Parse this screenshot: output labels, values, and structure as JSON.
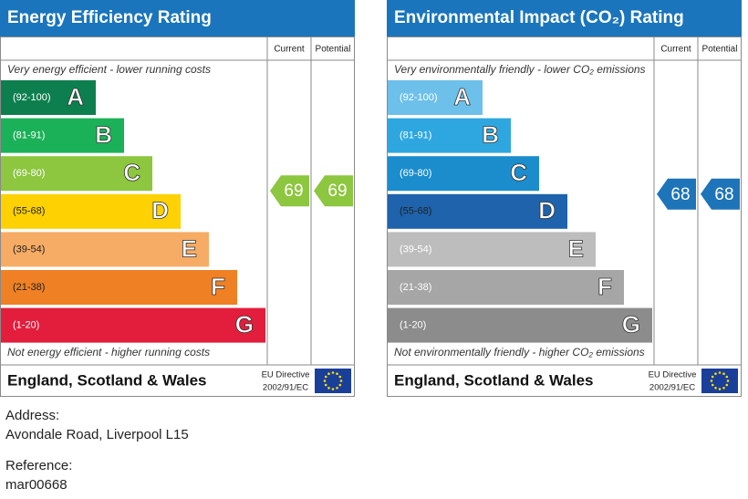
{
  "panels": [
    {
      "title": "Energy Efficiency Rating",
      "col_current": "Current",
      "col_potential": "Potential",
      "top_note": "Very energy efficient - lower running costs",
      "bottom_note": "Not energy efficient - higher running costs",
      "bands": [
        {
          "range": "(92-100)",
          "letter": "A",
          "color": "#0d7f4f"
        },
        {
          "range": "(81-91)",
          "letter": "B",
          "color": "#1bb158"
        },
        {
          "range": "(69-80)",
          "letter": "C",
          "color": "#8dc63f"
        },
        {
          "range": "(55-68)",
          "letter": "D",
          "color": "#fdd102"
        },
        {
          "range": "(39-54)",
          "letter": "E",
          "color": "#f6ac64"
        },
        {
          "range": "(21-38)",
          "letter": "F",
          "color": "#ef8023"
        },
        {
          "range": "(1-20)",
          "letter": "G",
          "color": "#e31d3c"
        }
      ],
      "current": 69,
      "potential": 69,
      "arrow_color": "#8dc63f",
      "region": "England, Scotland & Wales",
      "directive": "EU Directive",
      "directive_code": "2002/91/EC"
    },
    {
      "title": "Environmental Impact (CO₂) Rating",
      "col_current": "Current",
      "col_potential": "Potential",
      "top_note": "Very environmentally friendly - lower CO₂ emissions",
      "bottom_note": "Not environmentally friendly - higher CO₂ emissions",
      "bands": [
        {
          "range": "(92-100)",
          "letter": "A",
          "color": "#6dc0ea"
        },
        {
          "range": "(81-91)",
          "letter": "B",
          "color": "#2ea7e0"
        },
        {
          "range": "(69-80)",
          "letter": "C",
          "color": "#1b8dcd"
        },
        {
          "range": "(55-68)",
          "letter": "D",
          "color": "#1e63ab"
        },
        {
          "range": "(39-54)",
          "letter": "E",
          "color": "#bdbdbd"
        },
        {
          "range": "(21-38)",
          "letter": "F",
          "color": "#a6a6a6"
        },
        {
          "range": "(1-20)",
          "letter": "G",
          "color": "#8c8c8c"
        }
      ],
      "current": 68,
      "potential": 68,
      "arrow_color": "#1e74b9",
      "region": "England, Scotland & Wales",
      "directive": "EU Directive",
      "directive_code": "2002/91/EC"
    }
  ],
  "address_label": "Address:",
  "address": "Avondale Road, Liverpool L15",
  "reference_label": "Reference:",
  "reference": "mar00668"
}
